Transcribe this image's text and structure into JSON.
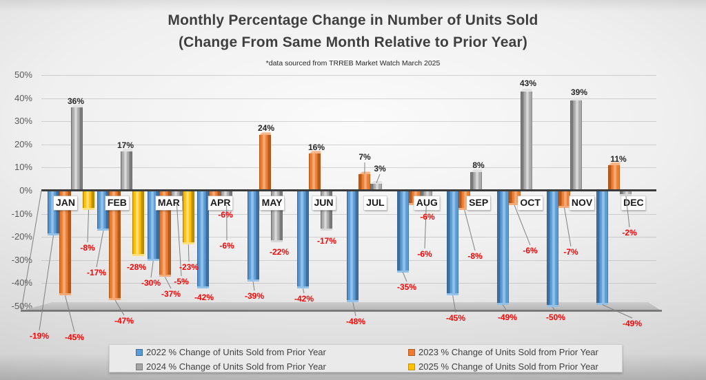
{
  "title": {
    "line1": "Monthly Percentage Change in Number of Units Sold",
    "line2": "(Change From Same Month Relative to Prior Year)",
    "subtitle": "*data sourced from TRREB Market Watch March 2025"
  },
  "chart_data": {
    "type": "bar",
    "categories": [
      "JAN",
      "FEB",
      "MAR",
      "APR",
      "MAY",
      "JUN",
      "JUL",
      "AUG",
      "SEP",
      "OCT",
      "NOV",
      "DEC"
    ],
    "series": [
      {
        "name": "2022 % Change of Units Sold from Prior Year",
        "color": "#5B9BD5",
        "values": [
          -19,
          -17,
          -30,
          -42,
          -39,
          -42,
          -48,
          -35,
          -45,
          -49,
          -50,
          -49
        ]
      },
      {
        "name": "2023 % Change of Units Sold from Prior Year",
        "color": "#ED7D31",
        "values": [
          -45,
          -47,
          -37,
          -6,
          24,
          16,
          7,
          -6,
          -8,
          -6,
          -7,
          11
        ]
      },
      {
        "name": "2024 % Change of Units Sold from Prior Year",
        "color": "#A5A5A5",
        "values": [
          36,
          17,
          -5,
          -6,
          -22,
          -17,
          3,
          -6,
          8,
          43,
          39,
          -2
        ]
      },
      {
        "name": "2025 % Change of Units Sold from Prior Year",
        "color": "#FFC000",
        "values": [
          -8,
          -28,
          -23,
          null,
          null,
          null,
          null,
          null,
          null,
          null,
          null,
          null
        ]
      }
    ],
    "ylim": [
      -50,
      50
    ],
    "yticks": [
      50,
      40,
      30,
      20,
      10,
      0,
      -10,
      -20,
      -30,
      -40,
      -50
    ],
    "ytick_suffix": "%",
    "label_format": "percent",
    "grid": true,
    "legend_position": "bottom",
    "style": "3d-clustered"
  }
}
